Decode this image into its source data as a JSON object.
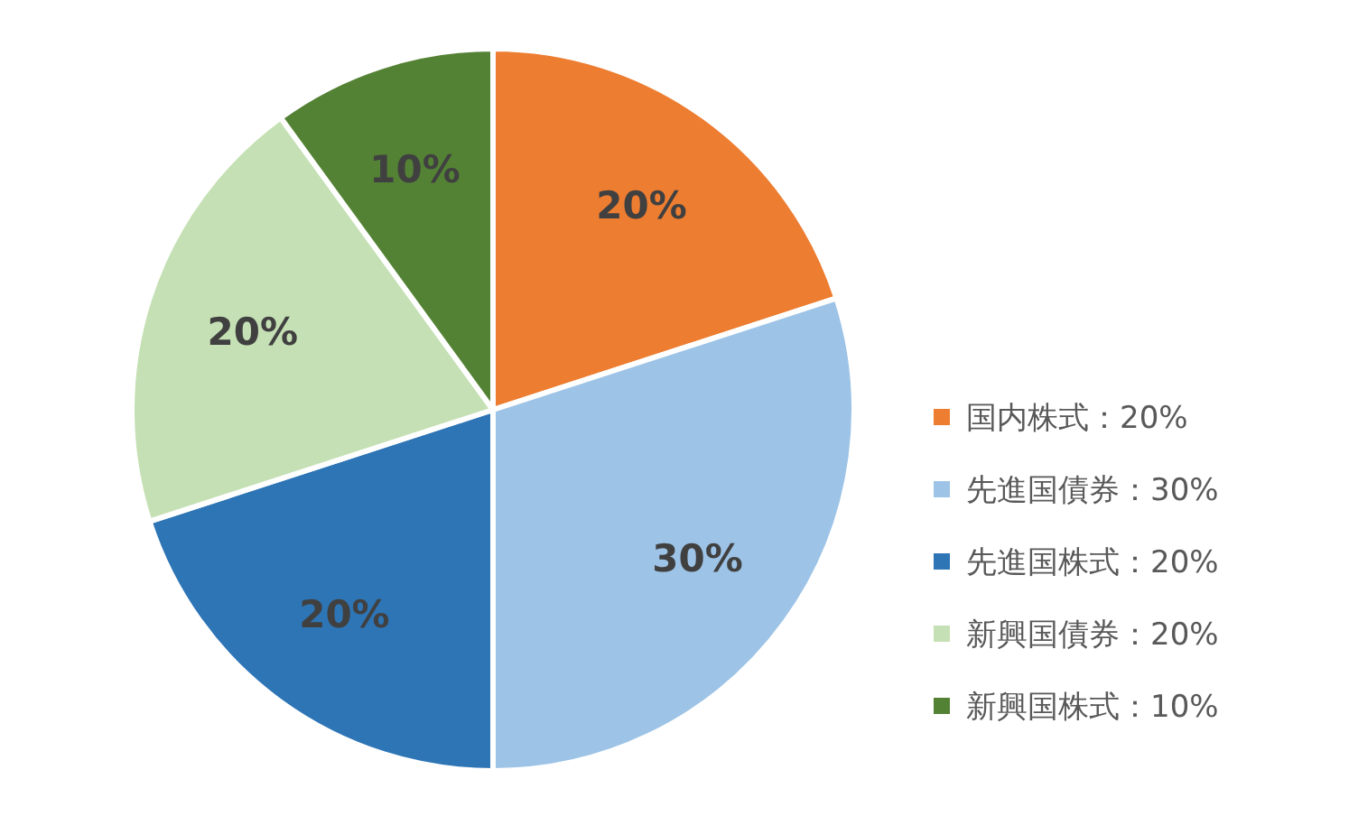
{
  "chart_data": {
    "type": "pie",
    "categories": [
      "国内株式：20%",
      "先進国債券：30%",
      "先進国株式：20%",
      "新興国債券：20%",
      "新興国株式：10%"
    ],
    "values": [
      20,
      30,
      20,
      20,
      10
    ],
    "colors": [
      "#ed7d31",
      "#9dc3e6",
      "#2e75b6",
      "#c5e0b4",
      "#548235"
    ],
    "value_labels": [
      "20%",
      "30%",
      "20%",
      "20%",
      "10%"
    ],
    "legend": "right"
  }
}
